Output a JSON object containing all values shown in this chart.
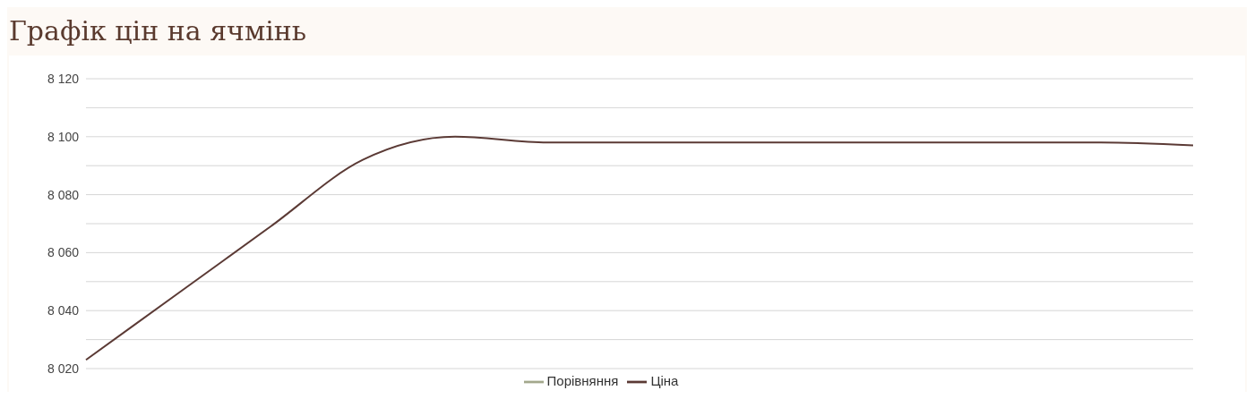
{
  "chart_data": {
    "type": "line",
    "title": "Графік цін на ячмінь",
    "categories": [
      null,
      null,
      null,
      null,
      null,
      null,
      null,
      null,
      null,
      null,
      null,
      null,
      null
    ],
    "series": [
      {
        "name": "Ціна",
        "color": "#5b3a35",
        "values": [
          8023,
          8046,
          8069,
          8092,
          8100,
          8098,
          8098,
          8098,
          8098,
          8098,
          8098,
          8098,
          8097
        ]
      },
      {
        "name": "Порівняння",
        "color": "#a3a88c",
        "values": [
          null,
          null,
          null,
          null,
          null,
          null,
          null,
          null,
          null,
          null,
          null,
          null,
          null
        ]
      }
    ],
    "ylim": [
      8020,
      8120
    ],
    "yticks": [
      {
        "value": 8020,
        "label": "8 020"
      },
      {
        "value": 8030,
        "label": null
      },
      {
        "value": 8040,
        "label": "8 040"
      },
      {
        "value": 8050,
        "label": null
      },
      {
        "value": 8060,
        "label": "8 060"
      },
      {
        "value": 8070,
        "label": null
      },
      {
        "value": 8080,
        "label": "8 080"
      },
      {
        "value": 8090,
        "label": null
      },
      {
        "value": 8100,
        "label": "8 100"
      },
      {
        "value": 8110,
        "label": null
      },
      {
        "value": 8120,
        "label": "8 120"
      }
    ],
    "grid": "y",
    "legend": "bottom",
    "marker": "none",
    "line_style": "solid",
    "tick_labels": "y"
  }
}
